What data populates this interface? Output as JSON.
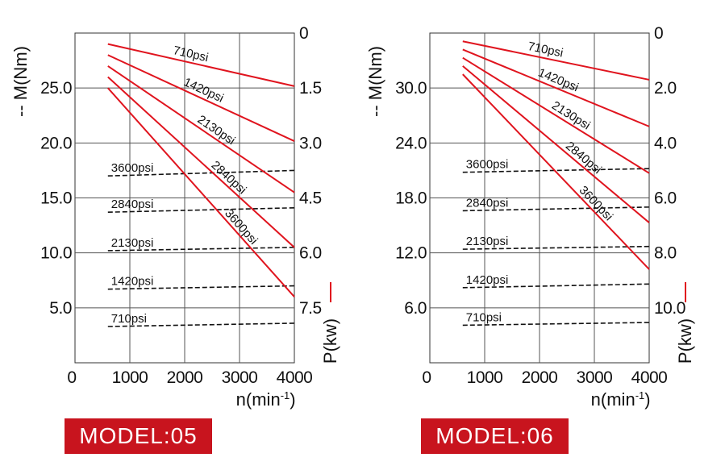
{
  "chart_data": [
    {
      "type": "line",
      "model_label": "MODEL:05",
      "xlabel": "n(min",
      "xlabel_sup": "-1",
      "xlabel_end": ")",
      "ylabel_left": "-- M(Nm)",
      "ylabel_right": "P(kw)",
      "x_ticks": [
        "0",
        "1000",
        "2000",
        "3000",
        "4000"
      ],
      "xlim": [
        0,
        4000
      ],
      "left_ticks": [
        "25.0",
        "20.0",
        "15.0",
        "10.0",
        "5.0"
      ],
      "left_tick_values": [
        25,
        20,
        15,
        10,
        5
      ],
      "left_lim": [
        0,
        30
      ],
      "right_ticks": [
        "0",
        "1.5",
        "3.0",
        "4.5",
        "6.0",
        "7.5"
      ],
      "right_tick_values": [
        0,
        1.5,
        3.0,
        4.5,
        6.0,
        7.5
      ],
      "right_lim": [
        9,
        0
      ],
      "power_series": [
        {
          "name": "710psi",
          "x": [
            600,
            4000
          ],
          "y": [
            0.3,
            1.45
          ]
        },
        {
          "name": "1420psi",
          "x": [
            600,
            4000
          ],
          "y": [
            0.6,
            2.95
          ]
        },
        {
          "name": "2130psi",
          "x": [
            600,
            4000
          ],
          "y": [
            0.9,
            4.35
          ]
        },
        {
          "name": "2840psi",
          "x": [
            600,
            4000
          ],
          "y": [
            1.2,
            5.85
          ]
        },
        {
          "name": "3600psi",
          "x": [
            600,
            4000
          ],
          "y": [
            1.5,
            7.2
          ]
        }
      ],
      "torque_series": [
        {
          "name": "3600psi",
          "x": [
            600,
            4000
          ],
          "y": [
            17.0,
            17.5
          ]
        },
        {
          "name": "2840psi",
          "x": [
            600,
            4000
          ],
          "y": [
            13.7,
            14.1
          ]
        },
        {
          "name": "2130psi",
          "x": [
            600,
            4000
          ],
          "y": [
            10.2,
            10.5
          ]
        },
        {
          "name": "1420psi",
          "x": [
            600,
            4000
          ],
          "y": [
            6.7,
            7.0
          ]
        },
        {
          "name": "710psi",
          "x": [
            600,
            4000
          ],
          "y": [
            3.3,
            3.6
          ]
        }
      ]
    },
    {
      "type": "line",
      "model_label": "MODEL:06",
      "xlabel": "n(min",
      "xlabel_sup": "-1",
      "xlabel_end": ")",
      "ylabel_left": "-- M(Nm)",
      "ylabel_right": "P(kw)",
      "x_ticks": [
        "0",
        "1000",
        "2000",
        "3000",
        "4000"
      ],
      "xlim": [
        0,
        4000
      ],
      "left_ticks": [
        "30.0",
        "24.0",
        "18.0",
        "12.0",
        "6.0"
      ],
      "left_tick_values": [
        30,
        24,
        18,
        12,
        6
      ],
      "left_lim": [
        0,
        36
      ],
      "right_ticks": [
        "0",
        "2.0",
        "4.0",
        "6.0",
        "8.0",
        "10.0"
      ],
      "right_tick_values": [
        0,
        2.0,
        4.0,
        6.0,
        8.0,
        10.0
      ],
      "right_lim": [
        12,
        0
      ],
      "power_series": [
        {
          "name": "710psi",
          "x": [
            600,
            4000
          ],
          "y": [
            0.3,
            1.7
          ]
        },
        {
          "name": "1420psi",
          "x": [
            600,
            4000
          ],
          "y": [
            0.6,
            3.4
          ]
        },
        {
          "name": "2130psi",
          "x": [
            600,
            4000
          ],
          "y": [
            0.9,
            5.1
          ]
        },
        {
          "name": "2840psi",
          "x": [
            600,
            4000
          ],
          "y": [
            1.2,
            6.9
          ]
        },
        {
          "name": "3600psi",
          "x": [
            600,
            4000
          ],
          "y": [
            1.5,
            8.6
          ]
        }
      ],
      "torque_series": [
        {
          "name": "3600psi",
          "x": [
            600,
            4000
          ],
          "y": [
            20.8,
            21.2
          ]
        },
        {
          "name": "2840psi",
          "x": [
            600,
            4000
          ],
          "y": [
            16.6,
            17.0
          ]
        },
        {
          "name": "2130psi",
          "x": [
            600,
            4000
          ],
          "y": [
            12.4,
            12.7
          ]
        },
        {
          "name": "1420psi",
          "x": [
            600,
            4000
          ],
          "y": [
            8.2,
            8.6
          ]
        },
        {
          "name": "710psi",
          "x": [
            600,
            4000
          ],
          "y": [
            4.1,
            4.4
          ]
        }
      ]
    }
  ]
}
